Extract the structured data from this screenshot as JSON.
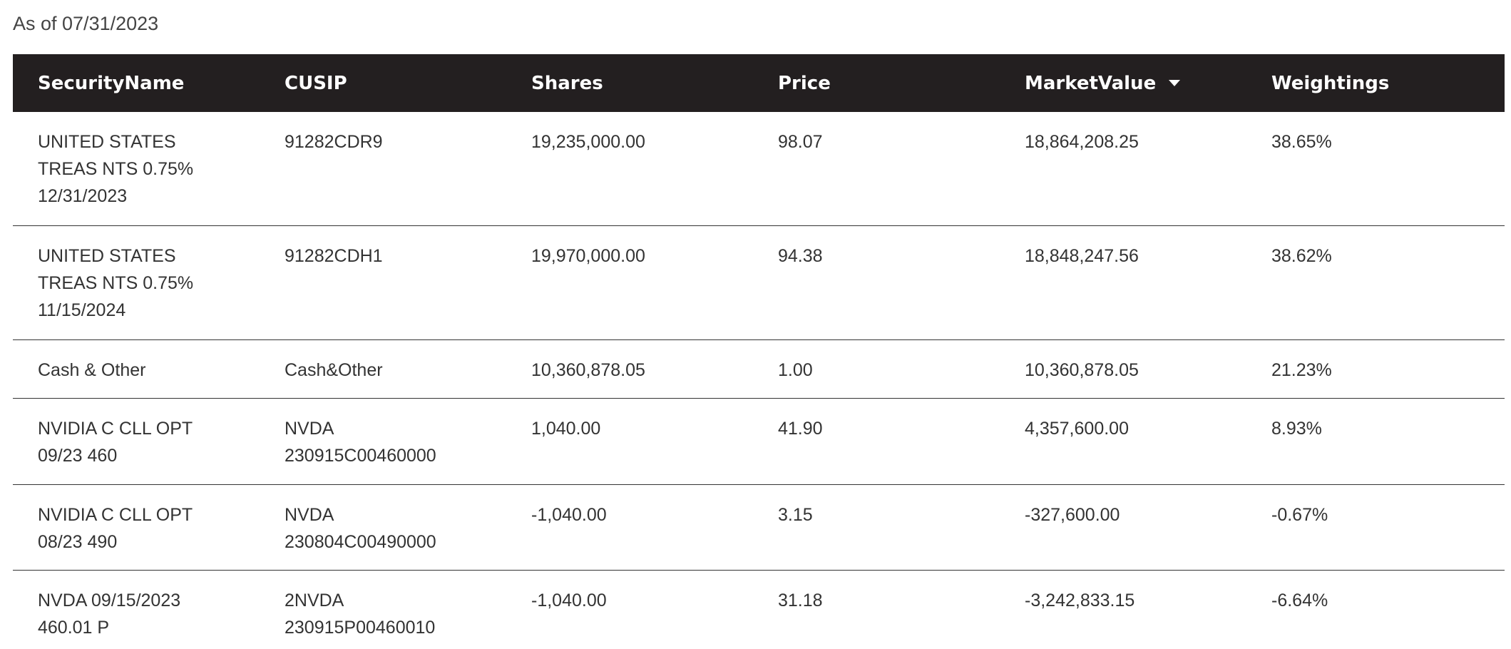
{
  "as_of": "As of 07/31/2023",
  "table": {
    "columns": [
      {
        "label": "SecurityName"
      },
      {
        "label": "CUSIP"
      },
      {
        "label": "Shares"
      },
      {
        "label": "Price"
      },
      {
        "label": "MarketValue",
        "sorted": "desc"
      },
      {
        "label": "Weightings"
      }
    ],
    "rows": [
      {
        "security_name": "UNITED STATES\nTREAS NTS 0.75%\n12/31/2023",
        "cusip": "91282CDR9",
        "shares": "19,235,000.00",
        "price": "98.07",
        "market_value": "18,864,208.25",
        "weighting": "38.65%"
      },
      {
        "security_name": "UNITED STATES\nTREAS NTS 0.75%\n11/15/2024",
        "cusip": "91282CDH1",
        "shares": "19,970,000.00",
        "price": "94.38",
        "market_value": "18,848,247.56",
        "weighting": "38.62%"
      },
      {
        "security_name": "Cash & Other",
        "cusip": "Cash&Other",
        "shares": "10,360,878.05",
        "price": "1.00",
        "market_value": "10,360,878.05",
        "weighting": "21.23%"
      },
      {
        "security_name": "NVIDIA C CLL OPT\n09/23 460",
        "cusip": "NVDA\n230915C00460000",
        "shares": "1,040.00",
        "price": "41.90",
        "market_value": "4,357,600.00",
        "weighting": "8.93%"
      },
      {
        "security_name": "NVIDIA C CLL OPT\n08/23 490",
        "cusip": "NVDA\n230804C00490000",
        "shares": "-1,040.00",
        "price": "3.15",
        "market_value": "-327,600.00",
        "weighting": "-0.67%"
      },
      {
        "security_name": "NVDA 09/15/2023\n460.01 P",
        "cusip": "2NVDA\n230915P00460010",
        "shares": "-1,040.00",
        "price": "31.18",
        "market_value": "-3,242,833.15",
        "weighting": "-6.64%"
      }
    ]
  }
}
